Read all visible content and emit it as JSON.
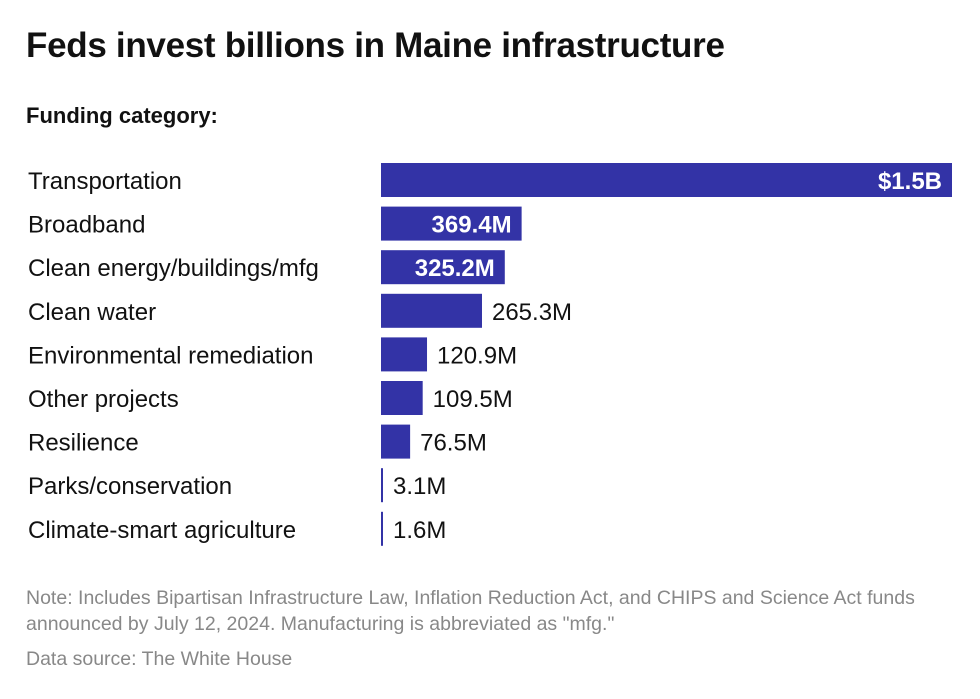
{
  "header": {
    "title": "Feds invest billions in Maine infrastructure",
    "subtitle": "Funding category:"
  },
  "footer": {
    "note": "Note: Includes Bipartisan Infrastructure Law, Inflation Reduction Act, and CHIPS and Science Act funds announced by July 12, 2024. Manufacturing is abbreviated as \"mfg.\"",
    "source": "Data source: The White House"
  },
  "colors": {
    "bar": "#3333a6",
    "label_text": "#111111",
    "footnote_text": "#888888"
  },
  "chart_data": {
    "type": "bar",
    "orientation": "horizontal",
    "title": "Feds invest billions in Maine infrastructure",
    "ylabel": "Funding category:",
    "xlabel": "",
    "grid": false,
    "legend": "none",
    "categories": [
      "Transportation",
      "Broadband",
      "Clean energy/buildings/mfg",
      "Clean water",
      "Environmental remediation",
      "Other projects",
      "Resilience",
      "Parks/conservation",
      "Climate-smart agriculture"
    ],
    "values": [
      1500,
      369.4,
      325.2,
      265.3,
      120.9,
      109.5,
      76.5,
      3.1,
      1.6
    ],
    "value_unit": "million USD",
    "value_labels": [
      "$1.5B",
      "369.4M",
      "325.2M",
      "265.3M",
      "120.9M",
      "109.5M",
      "76.5M",
      "3.1M",
      "1.6M"
    ],
    "xlim": [
      0,
      1500
    ]
  }
}
